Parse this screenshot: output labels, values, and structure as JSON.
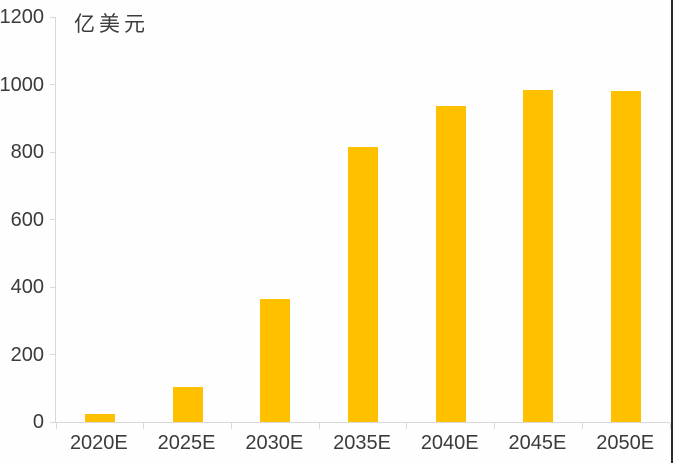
{
  "unit_label": "亿美元",
  "colors": {
    "bar": "#ffc000",
    "axis": "#d8d8d8",
    "text": "#3b3b3b",
    "background": "#fefefe",
    "right_edge_line": "#2b2b2b"
  },
  "chart_data": {
    "type": "bar",
    "categories": [
      "2020E",
      "2025E",
      "2030E",
      "2035E",
      "2040E",
      "2045E",
      "2050E"
    ],
    "values": [
      25,
      105,
      365,
      815,
      935,
      985,
      980
    ],
    "title": "",
    "xlabel": "",
    "ylabel": "亿美元",
    "ylim": [
      0,
      1200
    ],
    "yticks": [
      0,
      200,
      400,
      600,
      800,
      1000,
      1200
    ],
    "grid": false,
    "legend": "none",
    "bar_color": "#ffc000"
  }
}
